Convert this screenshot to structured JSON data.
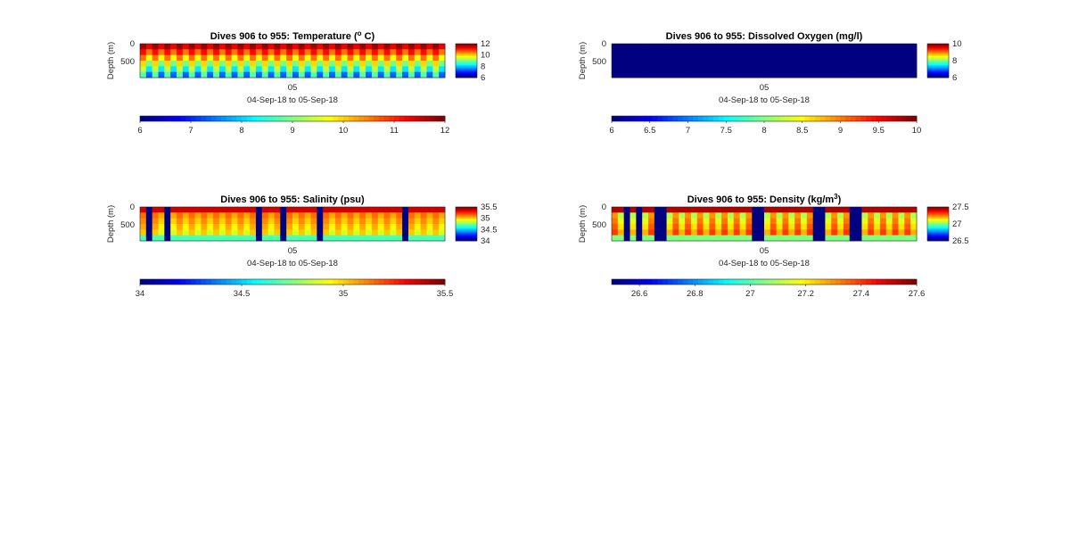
{
  "chart_data": [
    {
      "type": "heatmap",
      "title": "Dives 906 to 955: Temperature (",
      "title_super": "o",
      "title_suffix": " C)",
      "ylabel": "Depth (m)",
      "yticks": [
        "0",
        "500"
      ],
      "xtick": "05",
      "xlabel": "04-Sep-18 to 05-Sep-18",
      "pattern": "temperature",
      "clim": [
        6,
        12
      ],
      "colorbar_right_ticks": [
        "12",
        "10",
        "8",
        "6"
      ],
      "colorbar_bottom_ticks": [
        "6",
        "7",
        "8",
        "9",
        "10",
        "11",
        "12"
      ],
      "colormap": "jet"
    },
    {
      "type": "heatmap",
      "title": "Dives 906 to 955: Dissolved Oxygen (mg/l)",
      "title_super": "",
      "title_suffix": "",
      "ylabel": "Depth (m)",
      "yticks": [
        "0",
        "500"
      ],
      "xtick": "05",
      "xlabel": "04-Sep-18 to 05-Sep-18",
      "pattern": "uniform-min",
      "clim": [
        6,
        10
      ],
      "colorbar_right_ticks": [
        "10",
        "8",
        "6"
      ],
      "colorbar_bottom_ticks": [
        "6",
        "6.5",
        "7",
        "7.5",
        "8",
        "8.5",
        "9",
        "9.5",
        "10"
      ],
      "colormap": "jet"
    },
    {
      "type": "heatmap",
      "title": "Dives 906 to 955: Salinity (psu)",
      "title_super": "",
      "title_suffix": "",
      "ylabel": "Depth (m)",
      "yticks": [
        "0",
        "500"
      ],
      "xtick": "05",
      "xlabel": "04-Sep-18 to 05-Sep-18",
      "pattern": "salinity",
      "clim": [
        34,
        35.5
      ],
      "colorbar_right_ticks": [
        "35.5",
        "35",
        "34.5",
        "34"
      ],
      "colorbar_bottom_ticks": [
        "34",
        "34.5",
        "35",
        "35.5"
      ],
      "colormap": "jet"
    },
    {
      "type": "heatmap",
      "title": "Dives 906 to 955: Density (kg/m",
      "title_super": "3",
      "title_suffix": ")",
      "ylabel": "Depth (m)",
      "yticks": [
        "0",
        "500"
      ],
      "xtick": "05",
      "xlabel": "04-Sep-18 to 05-Sep-18",
      "pattern": "density",
      "clim": [
        26.5,
        27.6
      ],
      "colorbar_right_ticks": [
        "27.5",
        "27",
        "26.5"
      ],
      "colorbar_bottom_ticks": [
        "26.6",
        "26.8",
        "27",
        "27.2",
        "27.4",
        "27.6"
      ],
      "colormap": "jet"
    }
  ]
}
